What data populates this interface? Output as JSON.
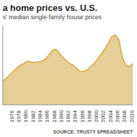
{
  "chart_data": {
    "type": "area",
    "title": "a home prices vs. U.S.",
    "subtitle": "s' median single-family house prices",
    "source": "SOURCE: TRUSTY SPREADSHEET",
    "x": [
      1974,
      1975,
      1976,
      1977,
      1978,
      1979,
      1980,
      1981,
      1982,
      1983,
      1984,
      1985,
      1986,
      1987,
      1988,
      1989,
      1990,
      1991,
      1992,
      1993,
      1994,
      1995,
      1996,
      1997,
      1998,
      1999,
      2000,
      2001,
      2002,
      2003,
      2004,
      2005,
      2006,
      2007,
      2008,
      2009,
      2010,
      2011
    ],
    "values": [
      30,
      33,
      38,
      42,
      46,
      50,
      52,
      55,
      54,
      53,
      54,
      55,
      57,
      62,
      68,
      70,
      66,
      60,
      56,
      52,
      50,
      46,
      42,
      42,
      44,
      48,
      52,
      58,
      64,
      70,
      78,
      86,
      88,
      82,
      60,
      50,
      48,
      52
    ],
    "color": "#d4a640",
    "xlim": [
      1974,
      2011
    ],
    "xticks": [
      1976,
      1978,
      1980,
      1982,
      1984,
      1986,
      1988,
      1990,
      1992,
      1994,
      1996,
      1998,
      2000,
      2002,
      2004,
      2006,
      2008,
      2010
    ],
    "ylim": [
      0,
      100
    ],
    "yticks": [],
    "grid": false,
    "tick_labels": "x"
  }
}
